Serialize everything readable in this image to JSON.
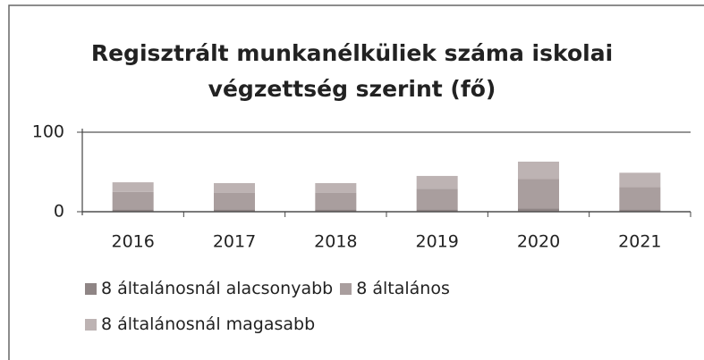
{
  "chart_data": {
    "type": "stacked_bar",
    "title": "Regisztrált munkanélküliek száma iskolai végzettség szerint (fő)",
    "categories": [
      "2016",
      "2017",
      "2018",
      "2019",
      "2020",
      "2021"
    ],
    "series": [
      {
        "name": "8 általánosnál alacsonyabb",
        "color": "#8f8585",
        "values": [
          3,
          3,
          3,
          3,
          4,
          3
        ]
      },
      {
        "name": "8 általános",
        "color": "#a99e9e",
        "values": [
          22,
          21,
          21,
          26,
          37,
          28
        ]
      },
      {
        "name": "8 általánosnál magasabb",
        "color": "#bdb3b3",
        "values": [
          12,
          12,
          12,
          16,
          22,
          18
        ]
      }
    ],
    "ylim": [
      0,
      100
    ],
    "yticks": [
      0,
      100
    ],
    "grid": true
  }
}
